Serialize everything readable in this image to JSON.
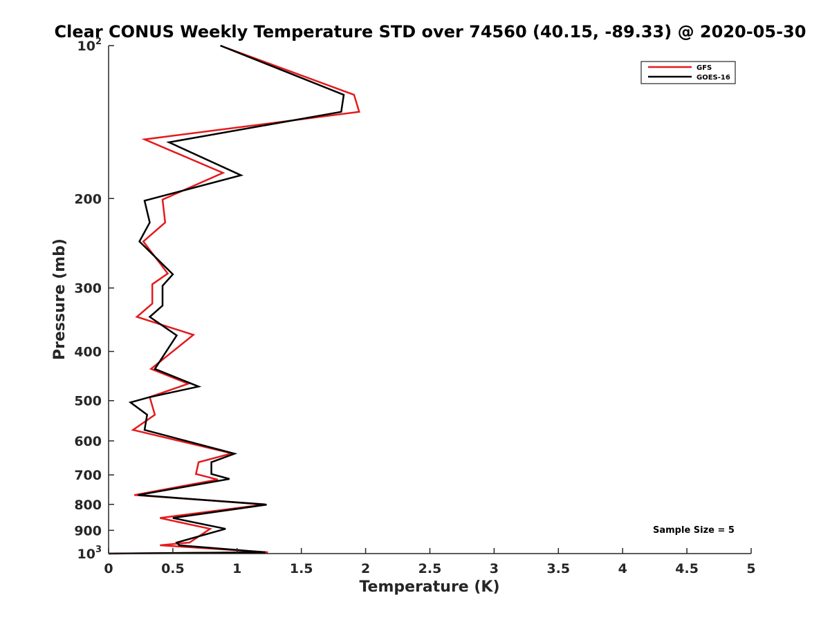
{
  "chart_data": {
    "type": "line",
    "title": "Clear CONUS Weekly Temperature STD over 74560 (40.15, -89.33) @ 2020-05-30",
    "xlabel": "Temperature (K)",
    "ylabel": "Pressure (mb)",
    "xlim": [
      0,
      5
    ],
    "ylim": [
      1000,
      100
    ],
    "y_scale": "log",
    "y_reversed": true,
    "grid": false,
    "legend_position": "top-right",
    "x_ticks": [
      0,
      0.5,
      1,
      1.5,
      2,
      2.5,
      3,
      3.5,
      4,
      4.5,
      5
    ],
    "x_tick_labels": [
      "0",
      "0.5",
      "1",
      "1.5",
      "2",
      "2.5",
      "3",
      "3.5",
      "4",
      "4.5",
      "5"
    ],
    "y_ticks": [
      100,
      200,
      300,
      400,
      500,
      600,
      700,
      800,
      900,
      1000
    ],
    "y_tick_labels": [
      {
        "base": "10",
        "exp": "2"
      },
      {
        "base": "200",
        "exp": ""
      },
      {
        "base": "300",
        "exp": ""
      },
      {
        "base": "400",
        "exp": ""
      },
      {
        "base": "500",
        "exp": ""
      },
      {
        "base": "600",
        "exp": ""
      },
      {
        "base": "700",
        "exp": ""
      },
      {
        "base": "800",
        "exp": ""
      },
      {
        "base": "900",
        "exp": ""
      },
      {
        "base": "10",
        "exp": "3"
      }
    ],
    "annotation": "Sample Size = 5",
    "series": [
      {
        "name": "GFS",
        "color": "#e41a1c",
        "points": [
          [
            0.87,
            100
          ],
          [
            1.91,
            125
          ],
          [
            1.95,
            135
          ],
          [
            0.28,
            153
          ],
          [
            0.89,
            178
          ],
          [
            0.42,
            201
          ],
          [
            0.44,
            223
          ],
          [
            0.27,
            243
          ],
          [
            0.46,
            281
          ],
          [
            0.34,
            295
          ],
          [
            0.34,
            322
          ],
          [
            0.22,
            342
          ],
          [
            0.66,
            371
          ],
          [
            0.33,
            433
          ],
          [
            0.62,
            463
          ],
          [
            0.32,
            492
          ],
          [
            0.36,
            533
          ],
          [
            0.19,
            571
          ],
          [
            0.96,
            635
          ],
          [
            0.7,
            661
          ],
          [
            0.68,
            697
          ],
          [
            0.85,
            715
          ],
          [
            0.2,
            767
          ],
          [
            1.22,
            800
          ],
          [
            0.4,
            851
          ],
          [
            0.79,
            894
          ],
          [
            0.63,
            951
          ],
          [
            0.4,
            963
          ],
          [
            1.24,
            994
          ],
          [
            0.0,
            1000
          ]
        ]
      },
      {
        "name": "GOES-16",
        "color": "#000000",
        "points": [
          [
            0.87,
            100
          ],
          [
            1.83,
            125
          ],
          [
            1.81,
            135
          ],
          [
            0.47,
            155
          ],
          [
            1.03,
            180
          ],
          [
            0.28,
            202
          ],
          [
            0.32,
            223
          ],
          [
            0.24,
            243
          ],
          [
            0.5,
            282
          ],
          [
            0.42,
            297
          ],
          [
            0.42,
            325
          ],
          [
            0.32,
            342
          ],
          [
            0.53,
            372
          ],
          [
            0.36,
            433
          ],
          [
            0.7,
            469
          ],
          [
            0.32,
            492
          ],
          [
            0.17,
            504
          ],
          [
            0.3,
            533
          ],
          [
            0.28,
            571
          ],
          [
            0.98,
            636
          ],
          [
            0.8,
            661
          ],
          [
            0.8,
            697
          ],
          [
            0.94,
            713
          ],
          [
            0.23,
            767
          ],
          [
            1.23,
            801
          ],
          [
            0.5,
            851
          ],
          [
            0.91,
            894
          ],
          [
            0.53,
            951
          ],
          [
            0.55,
            963
          ],
          [
            1.22,
            994
          ],
          [
            0.0,
            1000
          ]
        ]
      }
    ]
  }
}
